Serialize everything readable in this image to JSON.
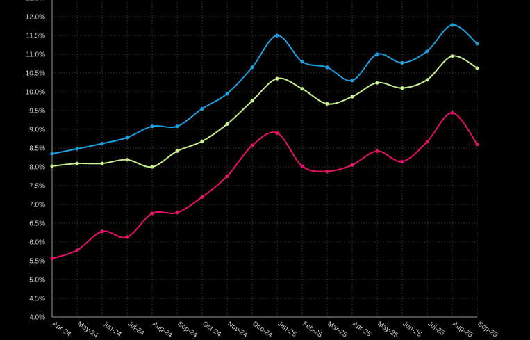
{
  "chart_data": {
    "type": "line",
    "title": "",
    "xlabel": "",
    "ylabel": "",
    "ylim": [
      4.0,
      12.5
    ],
    "y_tick_step": 0.5,
    "y_tick_format": "percent_1dp",
    "grid": true,
    "legend": "none",
    "curve": "smooth",
    "background": "#000000",
    "categories": [
      "Apr-24",
      "May-24",
      "Jun-24",
      "Jul-24",
      "Aug-24",
      "Sep-24",
      "Oct-24",
      "Nov-24",
      "Dec-24",
      "Jan-25",
      "Feb-25",
      "Mar-25",
      "Apr-25",
      "May-25",
      "Jun-25",
      "Jul-25",
      "Aug-25",
      "Sep-25"
    ],
    "series": [
      {
        "color": "#1ba1e2",
        "values": [
          8.35,
          8.48,
          8.62,
          8.78,
          9.08,
          9.08,
          9.55,
          9.95,
          10.65,
          11.5,
          10.8,
          10.65,
          10.3,
          11.0,
          10.77,
          11.08,
          11.78,
          11.28
        ]
      },
      {
        "color": "#c8f08c",
        "values": [
          8.02,
          8.09,
          8.09,
          8.19,
          8.0,
          8.42,
          8.68,
          9.14,
          9.76,
          10.35,
          10.08,
          9.68,
          9.87,
          10.24,
          10.1,
          10.32,
          10.95,
          10.63
        ]
      },
      {
        "color": "#e8106a",
        "values": [
          5.56,
          5.78,
          6.28,
          6.13,
          6.76,
          6.78,
          7.2,
          7.75,
          8.57,
          8.9,
          8.02,
          7.88,
          8.05,
          8.42,
          8.14,
          8.67,
          9.44,
          8.6
        ]
      }
    ]
  }
}
